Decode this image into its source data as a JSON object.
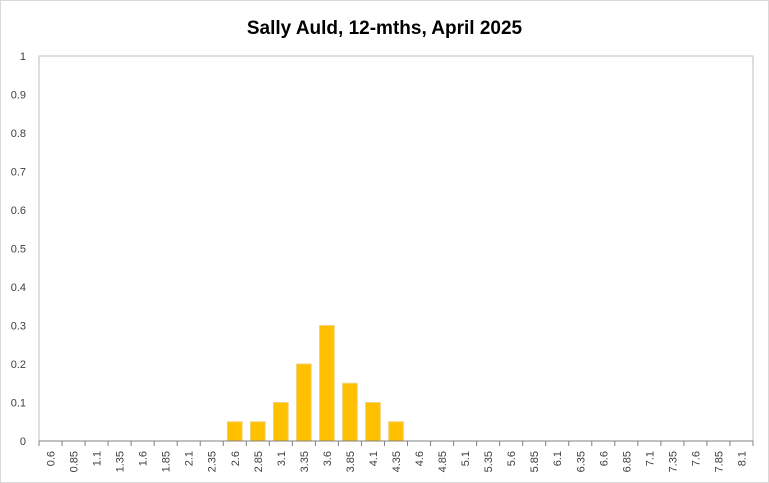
{
  "chart_data": {
    "type": "bar",
    "title": "Sally Auld, 12-mths, April 2025",
    "xlabel": "",
    "ylabel": "",
    "ylim": [
      0,
      1
    ],
    "yticks": [
      "0",
      "0.1",
      "0.2",
      "0.3",
      "0.4",
      "0.5",
      "0.6",
      "0.7",
      "0.8",
      "0.9",
      "1"
    ],
    "categories": [
      "0.6",
      "0.85",
      "1.1",
      "1.35",
      "1.6",
      "1.85",
      "2.1",
      "2.35",
      "2.6",
      "2.85",
      "3.1",
      "3.35",
      "3.6",
      "3.85",
      "4.1",
      "4.35",
      "4.6",
      "4.85",
      "5.1",
      "5.35",
      "5.6",
      "5.85",
      "6.1",
      "6.35",
      "6.6",
      "6.85",
      "7.1",
      "7.35",
      "7.6",
      "7.85",
      "8.1"
    ],
    "values": [
      0,
      0,
      0,
      0,
      0,
      0,
      0,
      0,
      0.05,
      0.05,
      0.1,
      0.2,
      0.3,
      0.15,
      0.1,
      0.05,
      0,
      0,
      0,
      0,
      0,
      0,
      0,
      0,
      0,
      0,
      0,
      0,
      0,
      0,
      0
    ],
    "bar_color": "#FFC000",
    "axis_color": "#808080",
    "grid": false,
    "legend": "none"
  }
}
